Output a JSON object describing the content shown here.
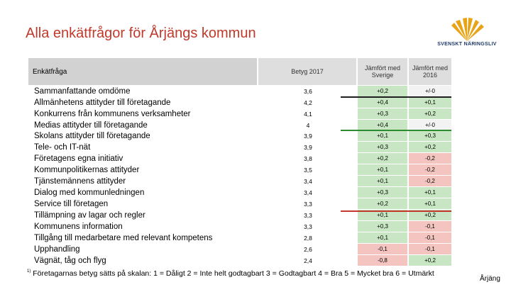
{
  "title": "Alla enkätfrågor för Årjängs kommun",
  "logo": {
    "text": "SVENSKT NÄRINGSLIV",
    "icon": "sun-rays-logo"
  },
  "header": {
    "question": "Enkätfråga",
    "betyg": "Betyg 2017",
    "sverige": "Jämfört med Sverige",
    "m2016": "Jämfört med 2016"
  },
  "rows": [
    {
      "q": "Sammanfattande omdöme",
      "b": "3,6",
      "s": "+0,2",
      "m": "+/-0",
      "sc": "pos",
      "mc": "neu",
      "bold": true
    },
    {
      "q": "Allmänhetens attityder till företagande",
      "b": "4,2",
      "s": "+0,4",
      "m": "+0,1",
      "sc": "pos",
      "mc": "pos"
    },
    {
      "q": "Konkurrens från kommunens verksamheter",
      "b": "4,1",
      "s": "+0,3",
      "m": "+0,2",
      "sc": "pos",
      "mc": "pos"
    },
    {
      "q": "Medias attityder till företagande",
      "b": "4",
      "s": "+0,4",
      "m": "+/-0",
      "sc": "pos",
      "mc": "neu"
    },
    {
      "q": "Skolans attityder till företagande",
      "b": "3,9",
      "s": "+0,1",
      "m": "+0,3",
      "sc": "pos",
      "mc": "pos"
    },
    {
      "q": "Tele- och IT-nät",
      "b": "3,9",
      "s": "+0,3",
      "m": "+0,2",
      "sc": "pos",
      "mc": "pos"
    },
    {
      "q": "Företagens egna initiativ",
      "b": "3,8",
      "s": "+0,2",
      "m": "-0,2",
      "sc": "pos",
      "mc": "neg"
    },
    {
      "q": "Kommunpolitikernas attityder",
      "b": "3,5",
      "s": "+0,1",
      "m": "-0,2",
      "sc": "pos",
      "mc": "neg"
    },
    {
      "q": "Tjänstemännens attityder",
      "b": "3,4",
      "s": "+0,1",
      "m": "-0,2",
      "sc": "pos",
      "mc": "neg"
    },
    {
      "q": "Dialog med kommunledningen",
      "b": "3,4",
      "s": "+0,3",
      "m": "+0,1",
      "sc": "pos",
      "mc": "pos"
    },
    {
      "q": "Service till företagen",
      "b": "3,3",
      "s": "+0,2",
      "m": "+0,1",
      "sc": "pos",
      "mc": "pos"
    },
    {
      "q": "Tillämpning av lagar och regler",
      "b": "3,3",
      "s": "+0,1",
      "m": "+0,2",
      "sc": "pos",
      "mc": "pos"
    },
    {
      "q": "Kommunens information",
      "b": "3,3",
      "s": "+0,3",
      "m": "-0,1",
      "sc": "pos",
      "mc": "neg"
    },
    {
      "q": "Tillgång till medarbetare med relevant kompetens",
      "b": "2,8",
      "s": "+0,1",
      "m": "-0,1",
      "sc": "pos",
      "mc": "neg"
    },
    {
      "q": "Upphandling",
      "b": "2,6",
      "s": "-0,1",
      "m": "-0,1",
      "sc": "neg",
      "mc": "neg"
    },
    {
      "q": "Vägnät, tåg och flyg",
      "b": "2,4",
      "s": "-0,8",
      "m": "+0,2",
      "sc": "neg",
      "mc": "pos"
    }
  ],
  "colors": {
    "title": "#c0392b",
    "positive": "#c8e6c3",
    "negative": "#f3c4c0",
    "neutral": "#f3f3f3"
  },
  "footnote": {
    "marker": "1)",
    "text": "Företagarnas betyg sätts på skalan: 1 = Dåligt 2 = Inte helt godtagbart 3 = Godtagbart 4 = Bra 5 = Mycket bra 6 = Utmärkt"
  },
  "municipality": "Årjäng"
}
